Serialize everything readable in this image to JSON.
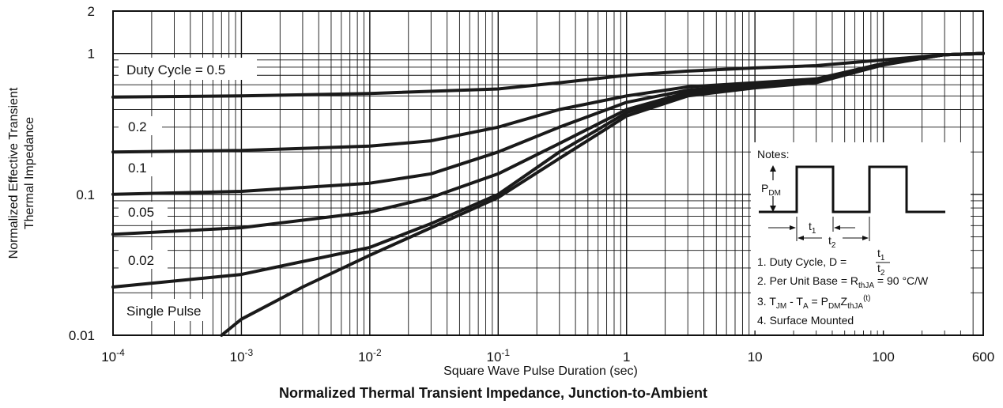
{
  "chart_data": {
    "type": "line",
    "title": "Normalized Thermal Transient Impedance, Junction-to-Ambient",
    "xlabel": "Square Wave Pulse Duration (sec)",
    "ylabel_line1": "Normalized Effective Transient",
    "ylabel_line2": "Thermal Impedance",
    "x_scale": "log",
    "y_scale": "log",
    "xlim": [
      0.0001,
      600
    ],
    "ylim": [
      0.01,
      2
    ],
    "grid": true,
    "x_ticks": [
      {
        "value": 0.0001,
        "base": "10",
        "exp": "-4"
      },
      {
        "value": 0.001,
        "base": "10",
        "exp": "-3"
      },
      {
        "value": 0.01,
        "base": "10",
        "exp": "-2"
      },
      {
        "value": 0.1,
        "base": "10",
        "exp": "-1"
      },
      {
        "value": 1,
        "base": "1",
        "exp": ""
      },
      {
        "value": 10,
        "base": "10",
        "exp": ""
      },
      {
        "value": 100,
        "base": "100",
        "exp": ""
      },
      {
        "value": 600,
        "base": "600",
        "exp": ""
      }
    ],
    "y_ticks": [
      {
        "value": 0.01,
        "label": "0.01"
      },
      {
        "value": 0.1,
        "label": "0.1"
      },
      {
        "value": 1,
        "label": "1"
      },
      {
        "value": 2,
        "label": "2"
      }
    ],
    "series": [
      {
        "name": "Duty Cycle = 0.5",
        "points": [
          [
            0.0001,
            0.49
          ],
          [
            0.001,
            0.5
          ],
          [
            0.01,
            0.52
          ],
          [
            0.1,
            0.56
          ],
          [
            0.3,
            0.62
          ],
          [
            1,
            0.7
          ],
          [
            3,
            0.75
          ],
          [
            10,
            0.79
          ],
          [
            30,
            0.82
          ],
          [
            100,
            0.9
          ],
          [
            300,
            0.98
          ],
          [
            600,
            1.0
          ]
        ]
      },
      {
        "name": "0.2",
        "points": [
          [
            0.0001,
            0.2
          ],
          [
            0.001,
            0.205
          ],
          [
            0.01,
            0.22
          ],
          [
            0.03,
            0.24
          ],
          [
            0.1,
            0.3
          ],
          [
            0.3,
            0.4
          ],
          [
            1,
            0.5
          ],
          [
            3,
            0.58
          ],
          [
            10,
            0.62
          ],
          [
            30,
            0.66
          ],
          [
            100,
            0.85
          ],
          [
            300,
            0.98
          ],
          [
            600,
            1.0
          ]
        ]
      },
      {
        "name": "0.1",
        "points": [
          [
            0.0001,
            0.1
          ],
          [
            0.001,
            0.105
          ],
          [
            0.01,
            0.12
          ],
          [
            0.03,
            0.14
          ],
          [
            0.1,
            0.2
          ],
          [
            0.3,
            0.3
          ],
          [
            1,
            0.45
          ],
          [
            3,
            0.55
          ],
          [
            10,
            0.6
          ],
          [
            30,
            0.65
          ],
          [
            100,
            0.85
          ],
          [
            300,
            0.98
          ],
          [
            600,
            1.0
          ]
        ]
      },
      {
        "name": "0.05",
        "points": [
          [
            0.0001,
            0.052
          ],
          [
            0.001,
            0.058
          ],
          [
            0.01,
            0.075
          ],
          [
            0.03,
            0.095
          ],
          [
            0.1,
            0.14
          ],
          [
            0.3,
            0.23
          ],
          [
            1,
            0.4
          ],
          [
            3,
            0.53
          ],
          [
            10,
            0.59
          ],
          [
            30,
            0.64
          ],
          [
            100,
            0.84
          ],
          [
            300,
            0.98
          ],
          [
            600,
            1.0
          ]
        ]
      },
      {
        "name": "0.02",
        "points": [
          [
            0.0001,
            0.022
          ],
          [
            0.001,
            0.027
          ],
          [
            0.01,
            0.042
          ],
          [
            0.03,
            0.062
          ],
          [
            0.1,
            0.1
          ],
          [
            0.3,
            0.2
          ],
          [
            1,
            0.38
          ],
          [
            3,
            0.52
          ],
          [
            10,
            0.58
          ],
          [
            30,
            0.63
          ],
          [
            100,
            0.84
          ],
          [
            300,
            0.98
          ],
          [
            600,
            1.0
          ]
        ]
      },
      {
        "name": "Single Pulse",
        "points": [
          [
            0.0007,
            0.01
          ],
          [
            0.001,
            0.013
          ],
          [
            0.003,
            0.022
          ],
          [
            0.01,
            0.037
          ],
          [
            0.03,
            0.058
          ],
          [
            0.1,
            0.095
          ],
          [
            0.3,
            0.18
          ],
          [
            1,
            0.36
          ],
          [
            3,
            0.5
          ],
          [
            10,
            0.57
          ],
          [
            30,
            0.62
          ],
          [
            100,
            0.83
          ],
          [
            300,
            0.98
          ],
          [
            600,
            1.0
          ]
        ]
      }
    ],
    "series_labels": [
      {
        "text": "Duty Cycle = 0.5"
      },
      {
        "text": "0.2"
      },
      {
        "text": "0.1"
      },
      {
        "text": "0.05"
      },
      {
        "text": "0.02"
      },
      {
        "text": "Single Pulse"
      }
    ]
  },
  "notes": {
    "heading": "Notes:",
    "pdm_base": "P",
    "pdm_sub": "DM",
    "t1_base": "t",
    "t1_sub": "1",
    "t2_base": "t",
    "t2_sub": "2",
    "line1_prefix": "1. Duty Cycle, D = ",
    "frac_num_base": "t",
    "frac_num_sub": "1",
    "frac_den_base": "t",
    "frac_den_sub": "2",
    "line2_prefix": "2. Per Unit Base = R",
    "line2_sub": "thJA",
    "line2_suffix": " = 90 °C/W",
    "line3_a": "3. T",
    "line3_a_sub": "JM",
    "line3_b": " - T",
    "line3_b_sub": "A",
    "line3_c": " = P",
    "line3_c_sub": "DM",
    "line3_d": "Z",
    "line3_d_sub": "thJA",
    "line3_d_sup": "(t)",
    "line4": "4. Surface Mounted"
  }
}
